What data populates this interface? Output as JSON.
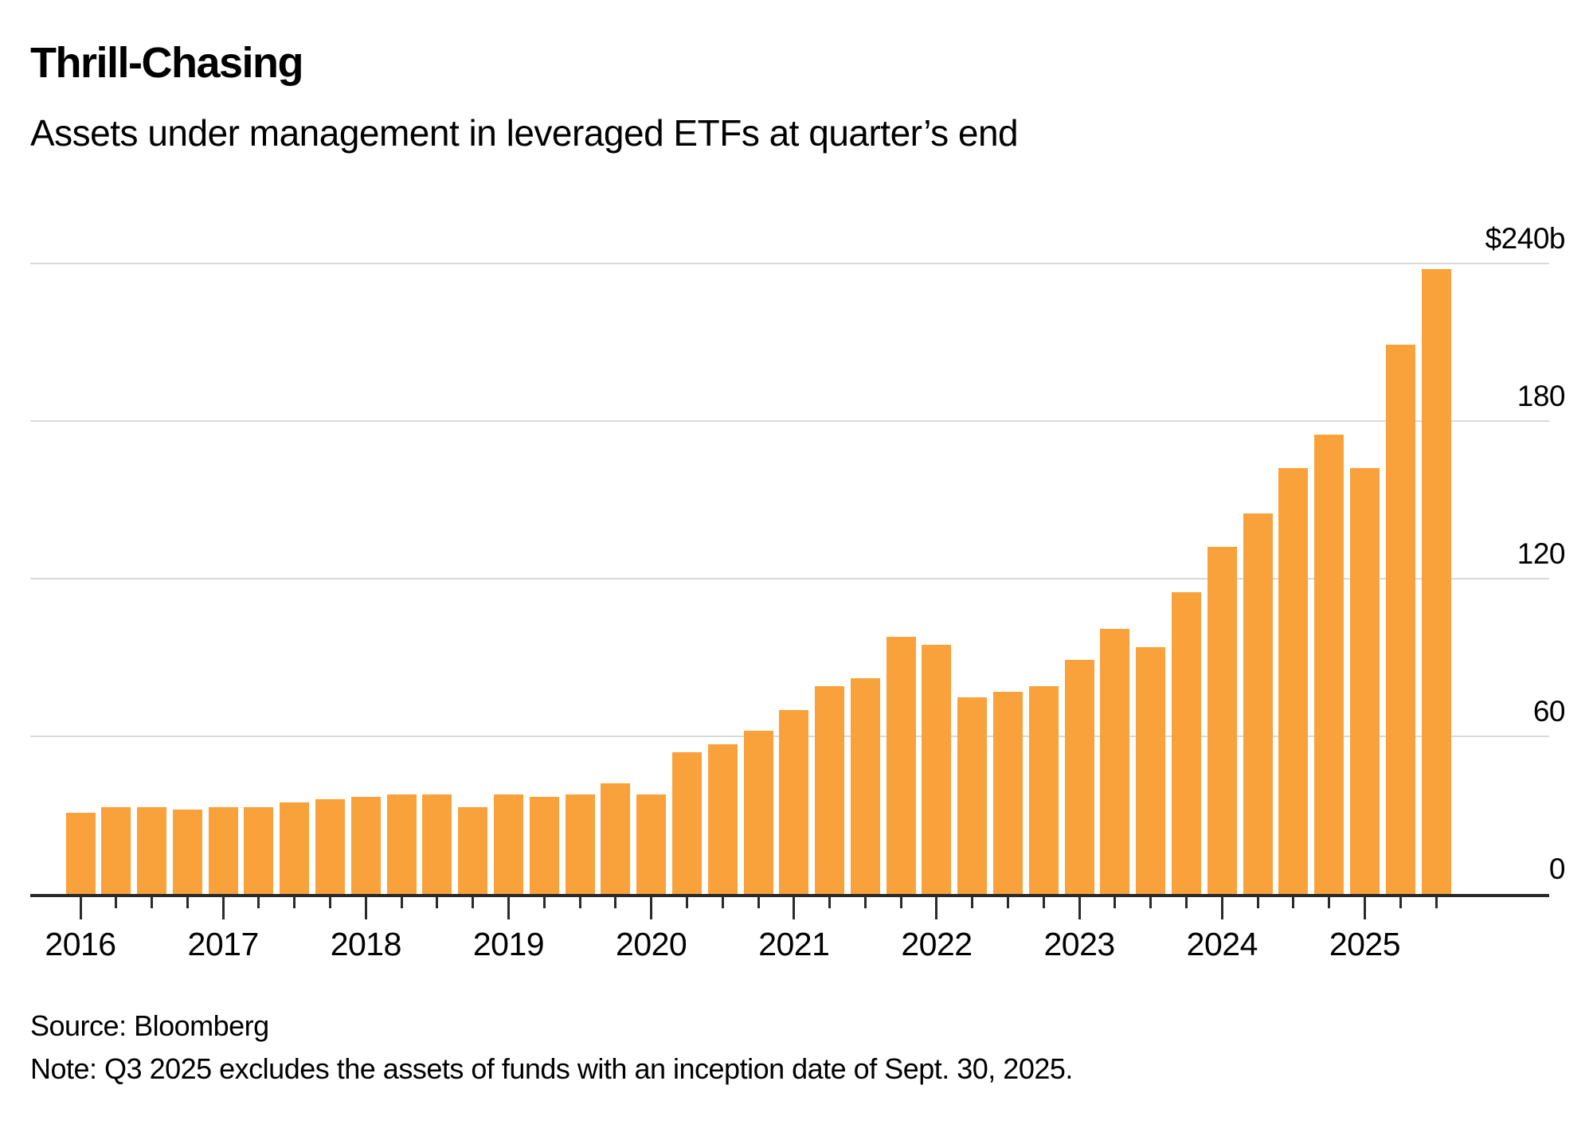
{
  "header": {
    "title": "Thrill-Chasing",
    "subtitle": "Assets under management in leveraged ETFs at quarter’s end"
  },
  "chart_data": {
    "type": "bar",
    "title": "Thrill-Chasing",
    "subtitle": "Assets under management in leveraged ETFs at quarter’s end",
    "unit": "billions of US dollars",
    "ylim": [
      0,
      240
    ],
    "grid": true,
    "legend_position": "none",
    "bar_color": "#f9a13b",
    "categories": [
      "Q1 2016",
      "Q2 2016",
      "Q3 2016",
      "Q4 2016",
      "Q1 2017",
      "Q2 2017",
      "Q3 2017",
      "Q4 2017",
      "Q1 2018",
      "Q2 2018",
      "Q3 2018",
      "Q4 2018",
      "Q1 2019",
      "Q2 2019",
      "Q3 2019",
      "Q4 2019",
      "Q1 2020",
      "Q2 2020",
      "Q3 2020",
      "Q4 2020",
      "Q1 2021",
      "Q2 2021",
      "Q3 2021",
      "Q4 2021",
      "Q1 2022",
      "Q2 2022",
      "Q3 2022",
      "Q4 2022",
      "Q1 2023",
      "Q2 2023",
      "Q3 2023",
      "Q4 2023",
      "Q1 2024",
      "Q2 2024",
      "Q3 2024",
      "Q4 2024",
      "Q1 2025",
      "Q2 2025",
      "Q3 2025"
    ],
    "values": [
      31,
      33,
      33,
      32,
      33,
      33,
      35,
      36,
      37,
      38,
      38,
      33,
      38,
      37,
      38,
      42,
      38,
      54,
      57,
      62,
      70,
      79,
      82,
      98,
      95,
      75,
      77,
      79,
      89,
      101,
      94,
      115,
      132,
      145,
      162,
      175,
      162,
      209,
      238
    ],
    "xlabel": "",
    "ylabel": "",
    "year_labels": [
      "2016",
      "2017",
      "2018",
      "2019",
      "2020",
      "2021",
      "2022",
      "2023",
      "2024",
      "2025"
    ],
    "y_ticks": [
      {
        "value": 240,
        "label": "$240b"
      },
      {
        "value": 180,
        "label": "180"
      },
      {
        "value": 120,
        "label": "120"
      },
      {
        "value": 60,
        "label": "60"
      },
      {
        "value": 0,
        "label": "0"
      }
    ]
  },
  "footer": {
    "source": "Source: Bloomberg",
    "note": "Note: Q3 2025 excludes the assets of funds with an inception date of Sept. 30, 2025."
  }
}
